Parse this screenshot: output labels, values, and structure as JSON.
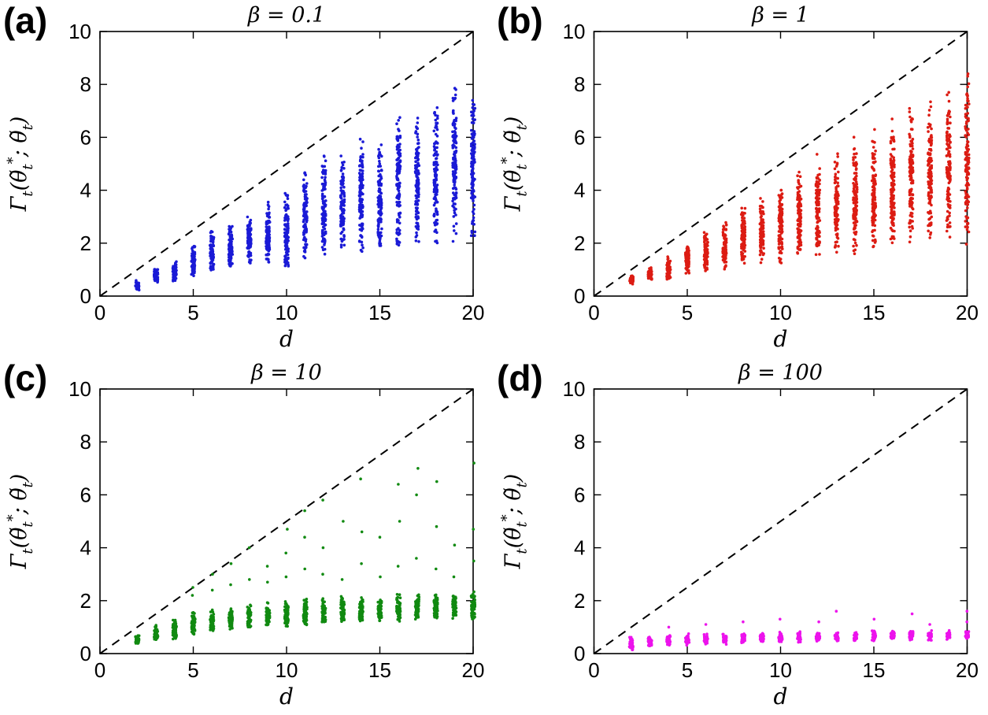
{
  "figure": {
    "background": "#ffffff",
    "layout": "2x2-subplots"
  },
  "chart_data": [
    {
      "type": "scatter",
      "panel_label": "(a)",
      "title": "β = 0.1",
      "xlabel": "d",
      "ylabel": "Γ_t(θ̃_t^*; θ̃_t)",
      "xlim": [
        0,
        20
      ],
      "ylim": [
        0,
        10
      ],
      "xticks": [
        0,
        5,
        10,
        15,
        20
      ],
      "yticks": [
        0,
        2,
        4,
        6,
        8,
        10
      ],
      "marker_color": "#1a1ad6",
      "reference_line": {
        "style": "dashed",
        "color": "#000000",
        "from": [
          0,
          0
        ],
        "to": [
          20,
          10
        ],
        "equation": "y = d/2"
      },
      "cluster_format": "[d, y_min, y_max, n_points, outliers?]",
      "clusters": [
        [
          2,
          0.2,
          0.6,
          45
        ],
        [
          3,
          0.5,
          1.05,
          55
        ],
        [
          4,
          0.55,
          1.35,
          60
        ],
        [
          5,
          0.75,
          2.05,
          75
        ],
        [
          6,
          0.9,
          2.6,
          85
        ],
        [
          7,
          1.0,
          2.85,
          90
        ],
        [
          8,
          1.05,
          3.3,
          95
        ],
        [
          9,
          1.1,
          3.6,
          100
        ],
        [
          10,
          1.0,
          4.2,
          110
        ],
        [
          11,
          1.4,
          5.0,
          110
        ],
        [
          12,
          1.5,
          5.4,
          115
        ],
        [
          13,
          1.6,
          5.4,
          115
        ],
        [
          14,
          1.6,
          6.3,
          120
        ],
        [
          15,
          1.7,
          6.0,
          120
        ],
        [
          16,
          1.8,
          7.2,
          125
        ],
        [
          17,
          1.9,
          7.0,
          125
        ],
        [
          18,
          1.8,
          7.6,
          125
        ],
        [
          19,
          2.0,
          8.4,
          130
        ],
        [
          20,
          2.0,
          8.1,
          130
        ]
      ]
    },
    {
      "type": "scatter",
      "panel_label": "(b)",
      "title": "β = 1",
      "xlabel": "d",
      "ylabel": "Γ_t(θ̃_t^*; θ̃_t)",
      "xlim": [
        0,
        20
      ],
      "ylim": [
        0,
        10
      ],
      "xticks": [
        0,
        5,
        10,
        15,
        20
      ],
      "yticks": [
        0,
        2,
        4,
        6,
        8,
        10
      ],
      "marker_color": "#dc1c13",
      "reference_line": {
        "style": "dashed",
        "color": "#000000",
        "from": [
          0,
          0
        ],
        "to": [
          20,
          10
        ],
        "equation": "y = d/2"
      },
      "cluster_format": "[d, y_min, y_max, n_points, outliers?]",
      "clusters": [
        [
          2,
          0.45,
          0.8,
          45
        ],
        [
          3,
          0.6,
          1.1,
          55
        ],
        [
          4,
          0.6,
          1.5,
          60
        ],
        [
          5,
          0.8,
          2.0,
          75
        ],
        [
          6,
          0.9,
          2.6,
          85
        ],
        [
          7,
          1.0,
          3.0,
          90
        ],
        [
          8,
          1.1,
          3.4,
          95
        ],
        [
          9,
          1.2,
          3.8,
          100
        ],
        [
          10,
          1.2,
          4.3,
          110
        ],
        [
          11,
          1.4,
          4.9,
          110
        ],
        [
          12,
          1.5,
          5.5,
          115
        ],
        [
          13,
          1.6,
          5.6,
          115
        ],
        [
          14,
          1.5,
          6.2,
          120
        ],
        [
          15,
          1.7,
          6.4,
          120
        ],
        [
          16,
          1.8,
          6.9,
          125
        ],
        [
          17,
          1.9,
          7.3,
          125
        ],
        [
          18,
          1.9,
          7.6,
          125
        ],
        [
          19,
          2.0,
          8.1,
          130
        ],
        [
          20,
          1.9,
          8.7,
          130
        ]
      ]
    },
    {
      "type": "scatter",
      "panel_label": "(c)",
      "title": "β = 10",
      "xlabel": "d",
      "ylabel": "Γ_t(θ̃_t^*; θ̃_t)",
      "xlim": [
        0,
        20
      ],
      "ylim": [
        0,
        10
      ],
      "xticks": [
        0,
        5,
        10,
        15,
        20
      ],
      "yticks": [
        0,
        2,
        4,
        6,
        8,
        10
      ],
      "marker_color": "#118a11",
      "reference_line": {
        "style": "dashed",
        "color": "#000000",
        "from": [
          0,
          0
        ],
        "to": [
          20,
          10
        ],
        "equation": "y = d/2"
      },
      "cluster_format": "[d, y_min, y_max, n_points, outliers?]",
      "clusters": [
        [
          2,
          0.3,
          0.75,
          40
        ],
        [
          3,
          0.5,
          1.1,
          50
        ],
        [
          4,
          0.55,
          1.3,
          55
        ],
        [
          5,
          0.7,
          1.6,
          60,
          [
            2.2,
            2.5
          ]
        ],
        [
          6,
          0.8,
          1.75,
          60,
          [
            2.4,
            3.0
          ]
        ],
        [
          7,
          0.9,
          1.85,
          65,
          [
            2.6,
            3.4
          ]
        ],
        [
          8,
          0.95,
          1.95,
          65,
          [
            2.8,
            4.0
          ]
        ],
        [
          9,
          1.0,
          2.0,
          65,
          [
            2.7,
            3.3
          ]
        ],
        [
          10,
          1.0,
          2.05,
          70,
          [
            2.9,
            3.8,
            4.7
          ]
        ],
        [
          11,
          1.05,
          2.1,
          70,
          [
            3.2,
            4.4,
            5.4
          ]
        ],
        [
          12,
          1.1,
          2.15,
          70,
          [
            3.0,
            4.0,
            5.8
          ]
        ],
        [
          13,
          1.1,
          2.2,
          70,
          [
            2.8,
            5.0
          ]
        ],
        [
          14,
          1.15,
          2.2,
          70,
          [
            3.4,
            4.6,
            6.6
          ]
        ],
        [
          15,
          1.2,
          2.25,
          70,
          [
            2.9,
            4.4
          ]
        ],
        [
          16,
          1.2,
          2.3,
          70,
          [
            3.3,
            5.0,
            6.4
          ]
        ],
        [
          17,
          1.25,
          2.3,
          70,
          [
            3.6,
            6.0,
            7.0
          ]
        ],
        [
          18,
          1.25,
          2.35,
          70,
          [
            3.2,
            4.8,
            6.5
          ]
        ],
        [
          19,
          1.3,
          2.35,
          70,
          [
            2.9,
            4.1
          ]
        ],
        [
          20,
          1.3,
          2.4,
          70,
          [
            3.5,
            4.7,
            7.2
          ]
        ]
      ]
    },
    {
      "type": "scatter",
      "panel_label": "(d)",
      "title": "β = 100",
      "xlabel": "d",
      "ylabel": "Γ_t(θ̃_t^*; θ̃_t)",
      "xlim": [
        0,
        20
      ],
      "ylim": [
        0,
        10
      ],
      "xticks": [
        0,
        5,
        10,
        15,
        20
      ],
      "yticks": [
        0,
        2,
        4,
        6,
        8,
        10
      ],
      "marker_color": "#ec13ec",
      "reference_line": {
        "style": "dashed",
        "color": "#000000",
        "from": [
          0,
          0
        ],
        "to": [
          20,
          10
        ],
        "equation": "y = d/2"
      },
      "cluster_format": "[d, y_min, y_max, n_points, outliers?]",
      "clusters": [
        [
          2,
          0.1,
          0.7,
          35
        ],
        [
          3,
          0.25,
          0.75,
          35
        ],
        [
          4,
          0.3,
          0.75,
          35,
          [
            1.0
          ]
        ],
        [
          5,
          0.3,
          0.8,
          35
        ],
        [
          6,
          0.35,
          0.8,
          35,
          [
            1.1
          ]
        ],
        [
          7,
          0.35,
          0.8,
          35
        ],
        [
          8,
          0.4,
          0.8,
          35,
          [
            1.2
          ]
        ],
        [
          9,
          0.4,
          0.8,
          35
        ],
        [
          10,
          0.4,
          0.85,
          35,
          [
            1.3
          ]
        ],
        [
          11,
          0.4,
          0.85,
          35
        ],
        [
          12,
          0.45,
          0.85,
          35,
          [
            1.2
          ]
        ],
        [
          13,
          0.45,
          0.85,
          35,
          [
            1.6
          ]
        ],
        [
          14,
          0.45,
          0.85,
          35
        ],
        [
          15,
          0.45,
          0.9,
          35,
          [
            1.3
          ]
        ],
        [
          16,
          0.5,
          0.9,
          35
        ],
        [
          17,
          0.5,
          0.9,
          35,
          [
            1.5
          ]
        ],
        [
          18,
          0.5,
          0.9,
          35,
          [
            1.1
          ]
        ],
        [
          19,
          0.5,
          0.9,
          35
        ],
        [
          20,
          0.5,
          0.9,
          35,
          [
            1.6,
            1.2
          ]
        ]
      ]
    }
  ]
}
